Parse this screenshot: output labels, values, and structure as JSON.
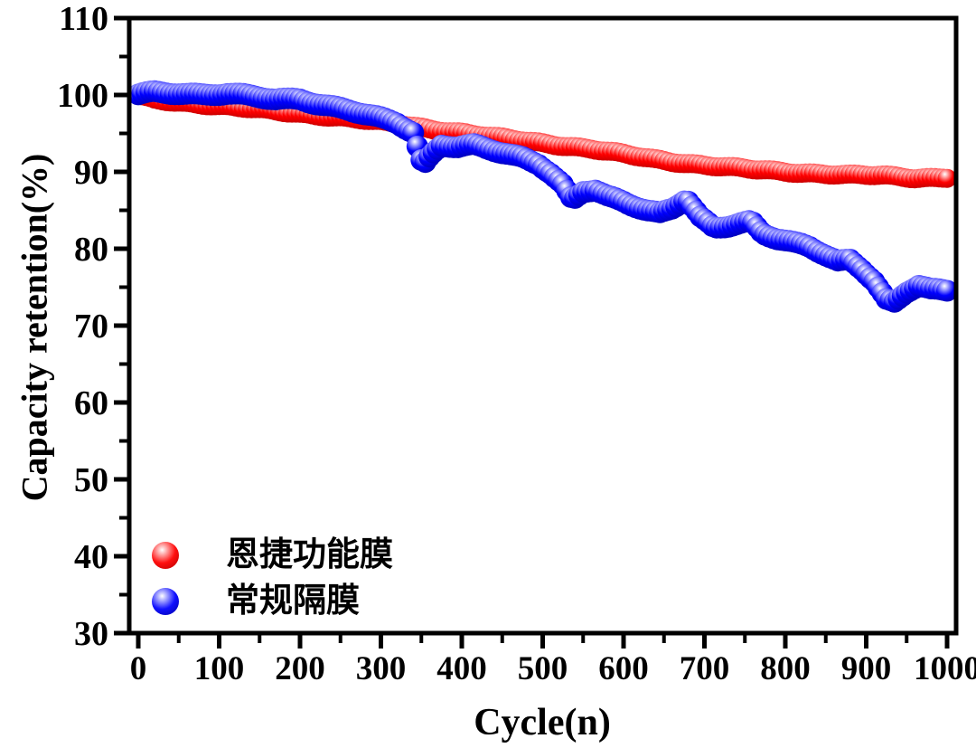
{
  "chart_data": {
    "type": "scatter",
    "title": "",
    "xlabel": "Cycle(n)",
    "ylabel": "Capacity retention(%)",
    "xlim": [
      -12,
      1012
    ],
    "ylim": [
      30,
      110
    ],
    "x_ticks": [
      0,
      100,
      200,
      300,
      400,
      500,
      600,
      700,
      800,
      900,
      1000
    ],
    "y_ticks": [
      30,
      40,
      50,
      60,
      70,
      80,
      90,
      100,
      110
    ],
    "x_minor_step": 50,
    "y_minor_step": 5,
    "grid": false,
    "frame": "full-box",
    "tick_direction": "out",
    "legend_position": "lower-left",
    "marker_style": "glossy-sphere",
    "colors": {
      "axis": "#000000",
      "background": "#ffffff"
    },
    "series": [
      {
        "name": "恩捷功能膜",
        "color": "#ff0000",
        "edge_color": "#b00000",
        "highlight_color": "#ffb4b4",
        "marker_radius": 10.5,
        "sample_step": 5,
        "end_value": 89.3,
        "points": [
          [
            0,
            99.9
          ],
          [
            20,
            99.4
          ],
          [
            50,
            99.1
          ],
          [
            100,
            98.6
          ],
          [
            150,
            98.1
          ],
          [
            200,
            97.6
          ],
          [
            250,
            97.1
          ],
          [
            300,
            96.5
          ],
          [
            330,
            96.1
          ],
          [
            360,
            95.6
          ],
          [
            400,
            95.1
          ],
          [
            440,
            94.5
          ],
          [
            480,
            94.0
          ],
          [
            520,
            93.5
          ],
          [
            560,
            93.0
          ],
          [
            600,
            92.3
          ],
          [
            640,
            91.6
          ],
          [
            680,
            91.1
          ],
          [
            720,
            90.7
          ],
          [
            760,
            90.3
          ],
          [
            800,
            90.0
          ],
          [
            840,
            89.8
          ],
          [
            880,
            89.6
          ],
          [
            920,
            89.5
          ],
          [
            960,
            89.2
          ],
          [
            1000,
            89.3
          ]
        ]
      },
      {
        "name": "常规隔膜",
        "color": "#0000ff",
        "edge_color": "#0000a0",
        "highlight_color": "#b4b4ff",
        "marker_radius": 12,
        "sample_step": 5,
        "end_value": 74.6,
        "points": [
          [
            0,
            100.0
          ],
          [
            20,
            100.3
          ],
          [
            50,
            100.2
          ],
          [
            80,
            100.1
          ],
          [
            110,
            100.2
          ],
          [
            140,
            99.8
          ],
          [
            170,
            99.4
          ],
          [
            200,
            99.5
          ],
          [
            230,
            98.7
          ],
          [
            260,
            98.0
          ],
          [
            290,
            97.2
          ],
          [
            320,
            96.4
          ],
          [
            340,
            95.2
          ],
          [
            352,
            90.8
          ],
          [
            362,
            92.2
          ],
          [
            375,
            93.5
          ],
          [
            395,
            93.2
          ],
          [
            415,
            93.4
          ],
          [
            435,
            92.9
          ],
          [
            455,
            92.4
          ],
          [
            475,
            91.9
          ],
          [
            495,
            91.1
          ],
          [
            510,
            89.8
          ],
          [
            525,
            88.2
          ],
          [
            537,
            86.2
          ],
          [
            550,
            87.4
          ],
          [
            565,
            87.6
          ],
          [
            580,
            86.8
          ],
          [
            600,
            86.2
          ],
          [
            615,
            85.6
          ],
          [
            630,
            85.0
          ],
          [
            645,
            84.6
          ],
          [
            660,
            85.2
          ],
          [
            678,
            86.4
          ],
          [
            695,
            84.0
          ],
          [
            712,
            82.7
          ],
          [
            728,
            83.0
          ],
          [
            745,
            83.4
          ],
          [
            758,
            83.6
          ],
          [
            772,
            82.0
          ],
          [
            790,
            81.3
          ],
          [
            810,
            80.7
          ],
          [
            830,
            80.2
          ],
          [
            850,
            79.2
          ],
          [
            865,
            78.4
          ],
          [
            880,
            78.6
          ],
          [
            895,
            77.4
          ],
          [
            910,
            75.8
          ],
          [
            925,
            73.3
          ],
          [
            935,
            72.9
          ],
          [
            950,
            74.3
          ],
          [
            965,
            75.2
          ],
          [
            980,
            74.7
          ],
          [
            1000,
            74.6
          ]
        ]
      }
    ]
  }
}
